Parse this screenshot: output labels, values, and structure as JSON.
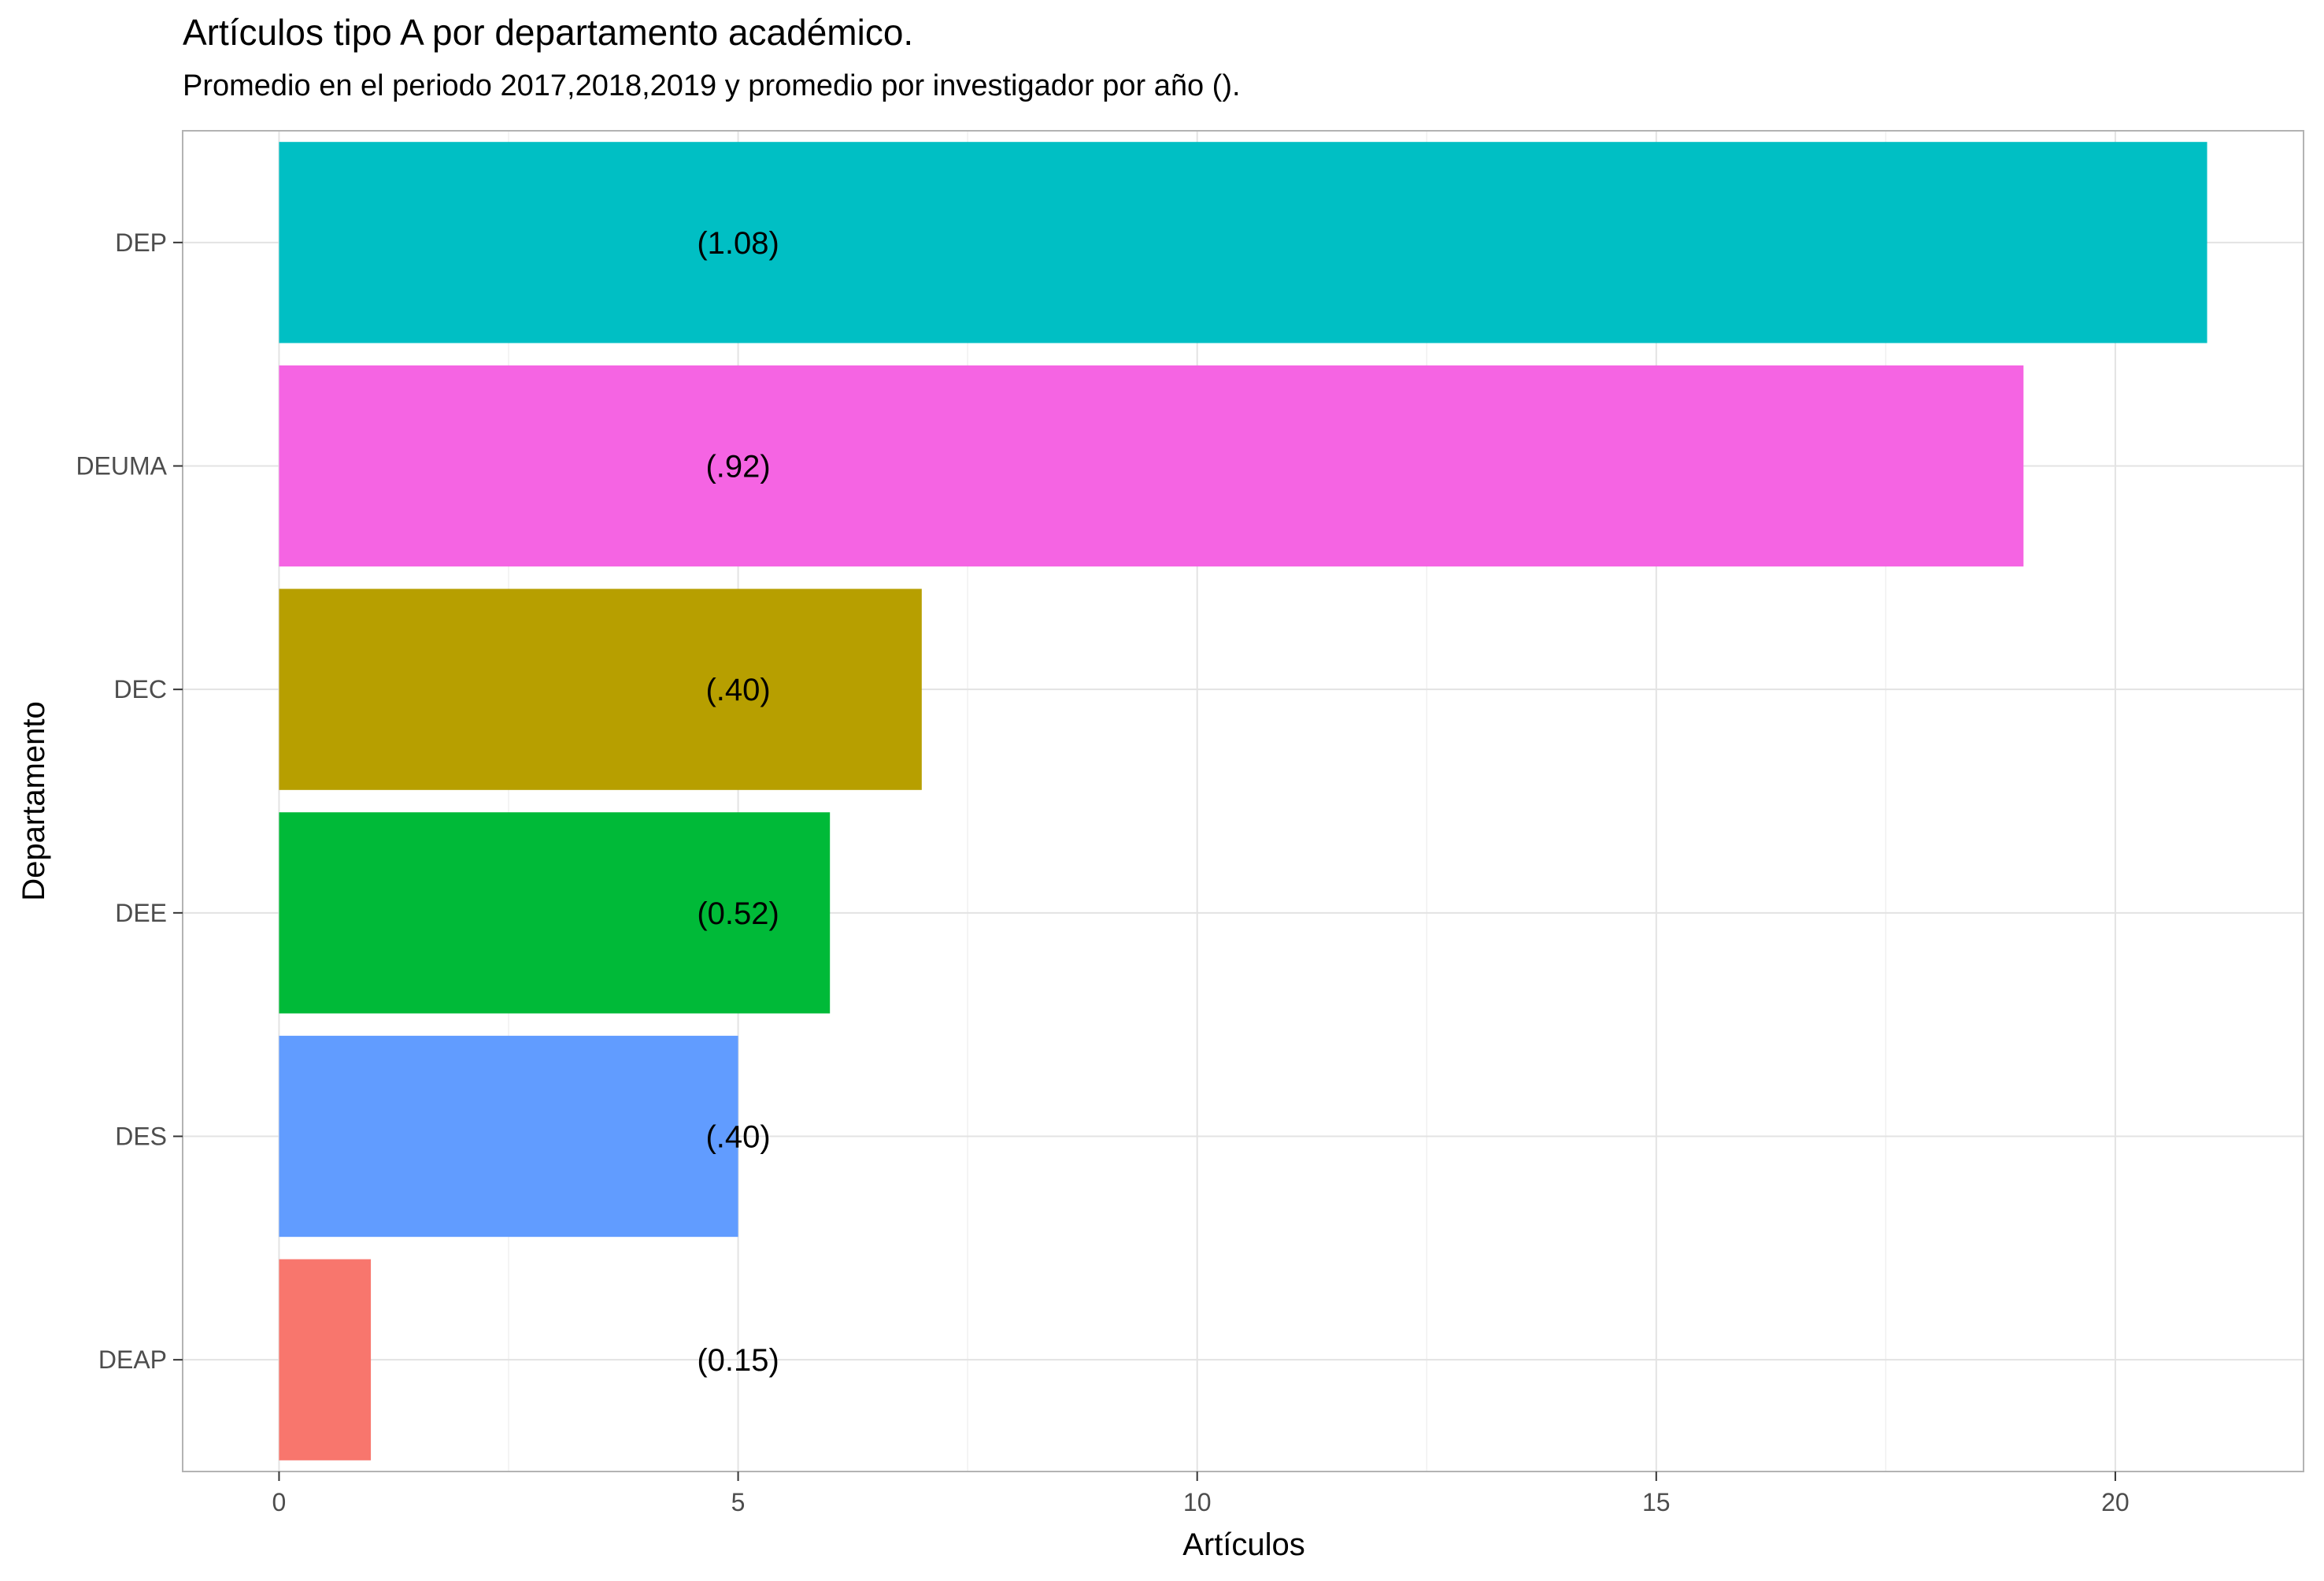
{
  "chart_data": {
    "type": "bar",
    "orientation": "horizontal",
    "title": "Artículos tipo A por departamento académico.",
    "subtitle": "Promedio en el periodo 2017,2018,2019 y promedio por investigador por año ().",
    "xlabel": "Artículos",
    "ylabel": "Departamento",
    "categories": [
      "DEP",
      "DEUMA",
      "DEC",
      "DEE",
      "DES",
      "DEAP"
    ],
    "values": [
      21,
      19,
      7,
      6,
      5,
      1
    ],
    "labels": [
      "(1.08)",
      "(.92)",
      "(.40)",
      "(0.52)",
      "(.40)",
      "(0.15)"
    ],
    "colors": [
      "#00BFC4",
      "#F564E3",
      "#B79F00",
      "#00BA38",
      "#619CFF",
      "#F8766D"
    ],
    "xlim": [
      -1.05,
      22.05
    ],
    "xticks": [
      0,
      5,
      10,
      15,
      20
    ],
    "label_x": 5,
    "grid": true,
    "legend": "none"
  }
}
